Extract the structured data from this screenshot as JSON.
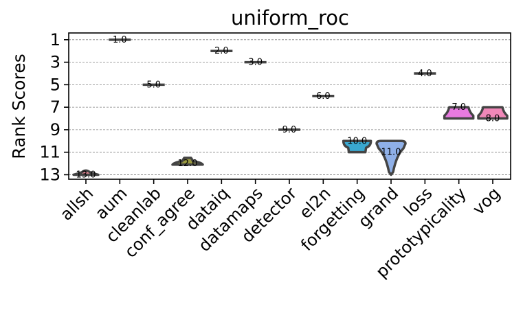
{
  "chart_data": {
    "type": "violin",
    "title": "uniform_roc",
    "xlabel": "",
    "ylabel": "Rank Scores",
    "ylim": [
      13.4,
      0.4
    ],
    "y_inverted": true,
    "yticks": [
      "1",
      "3",
      "5",
      "7",
      "9",
      "11",
      "13"
    ],
    "grid": "horizontal dashed",
    "categories": [
      "allsh",
      "aum",
      "cleanlab",
      "conf_agree",
      "dataiq",
      "datamaps",
      "detector",
      "el2n",
      "forgetting",
      "grand",
      "loss",
      "prototypicality",
      "vog"
    ],
    "values": [
      13.0,
      1.0,
      5.0,
      12.0,
      2.0,
      3.0,
      9.0,
      6.0,
      10.0,
      11.0,
      4.0,
      7.0,
      8.0
    ],
    "value_labels": [
      "13.0",
      "1.0",
      "5.0",
      "12.0",
      "2.0",
      "3.0",
      "9.0",
      "6.0",
      "10.0",
      "11.0",
      "4.0",
      "7.0",
      "8.0"
    ],
    "ranges": [
      [
        12.6,
        13.0
      ],
      [
        1.0,
        1.0
      ],
      [
        5.0,
        5.0
      ],
      [
        11.5,
        12.1
      ],
      [
        2.0,
        2.0
      ],
      [
        3.0,
        3.0
      ],
      [
        9.0,
        9.0
      ],
      [
        6.0,
        6.0
      ],
      [
        10.0,
        11.0
      ],
      [
        10.0,
        13.0
      ],
      [
        4.0,
        4.0
      ],
      [
        7.0,
        8.0
      ],
      [
        7.0,
        8.0
      ]
    ],
    "colors": [
      "#f08b9a",
      "#e6c45c",
      "#c8a878",
      "#9a9a40",
      "#5ab050",
      "#4fb89a",
      "#3fb8b0",
      "#42b0d0",
      "#3aa8d0",
      "#8fb0e8",
      "#c49ae8",
      "#e87ae0",
      "#f088b8"
    ]
  }
}
